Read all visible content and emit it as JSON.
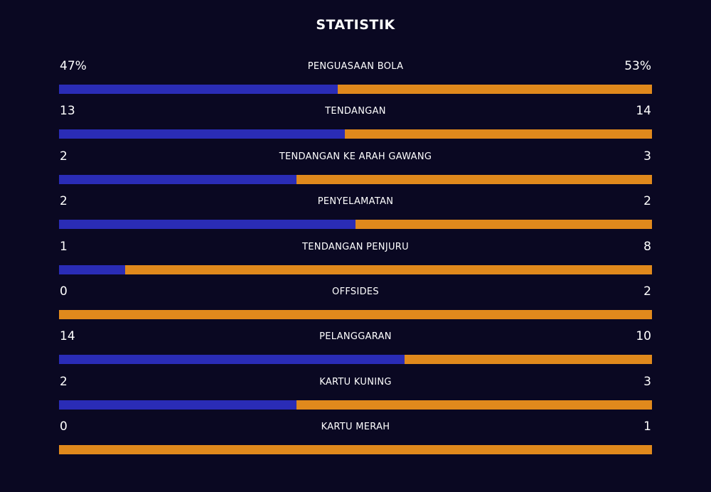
{
  "title": "STATISTIK",
  "colors": {
    "background": "#0a0822",
    "home": "#2a2cb6",
    "away": "#e0891c"
  },
  "stats": [
    {
      "label": "PENGUASAAN BOLA",
      "home": "47%",
      "away": "53%",
      "home_share": 0.47
    },
    {
      "label": "TENDANGAN",
      "home": "13",
      "away": "14",
      "home_share": 0.4815
    },
    {
      "label": "TENDANGAN KE ARAH GAWANG",
      "home": "2",
      "away": "3",
      "home_share": 0.4
    },
    {
      "label": "PENYELAMATAN",
      "home": "2",
      "away": "2",
      "home_share": 0.5
    },
    {
      "label": "TENDANGAN PENJURU",
      "home": "1",
      "away": "8",
      "home_share": 0.1111
    },
    {
      "label": "OFFSIDES",
      "home": "0",
      "away": "2",
      "home_share": 0
    },
    {
      "label": "PELANGGARAN",
      "home": "14",
      "away": "10",
      "home_share": 0.5833
    },
    {
      "label": "KARTU KUNING",
      "home": "2",
      "away": "3",
      "home_share": 0.4
    },
    {
      "label": "KARTU MERAH",
      "home": "0",
      "away": "1",
      "home_share": 0
    }
  ]
}
